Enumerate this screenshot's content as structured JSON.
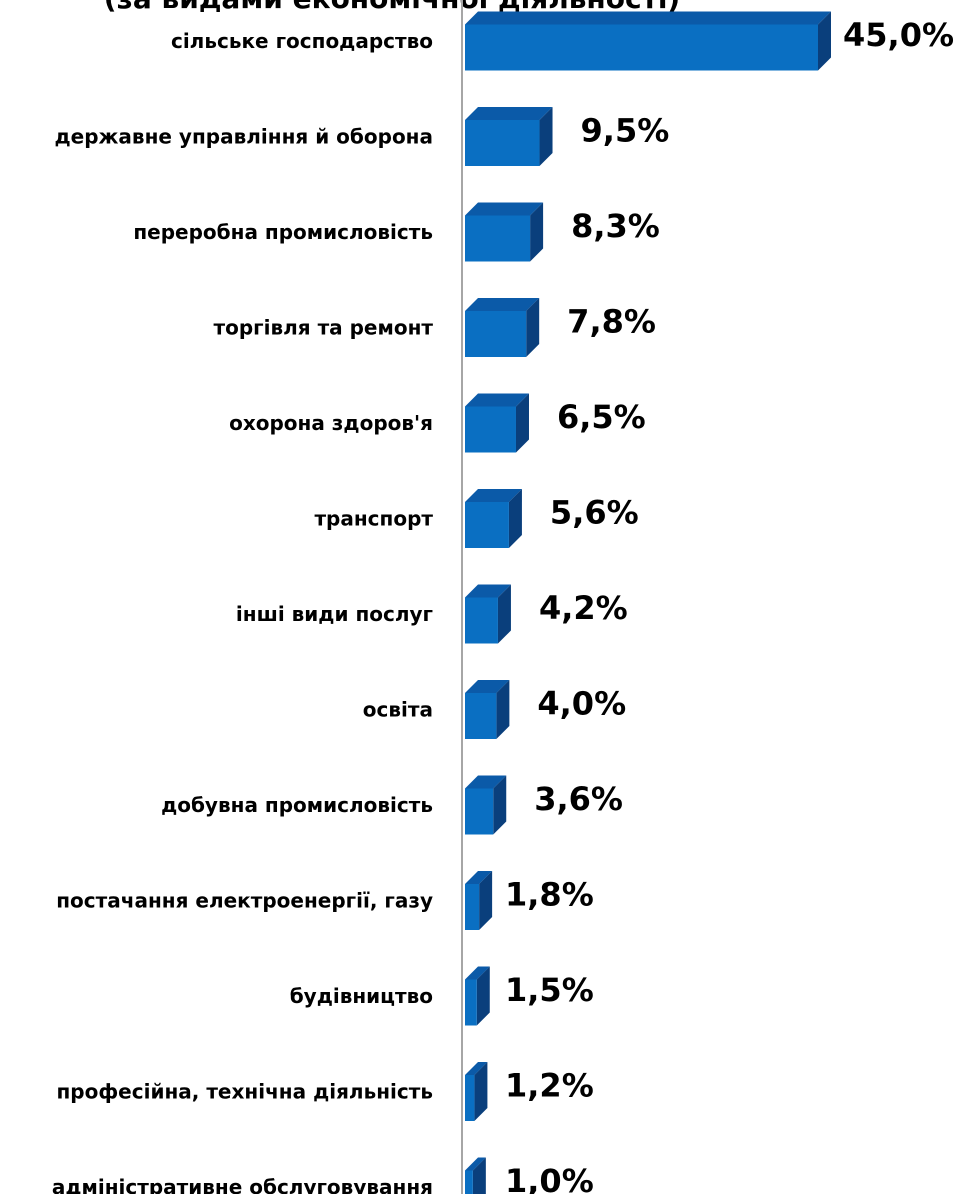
{
  "chart_data": {
    "type": "bar",
    "orientation": "horizontal",
    "title": "(за видами економічної діяльності)",
    "categories": [
      "сільське господарство",
      "державне управління й оборона",
      "переробна промисловість",
      "торгівля та ремонт",
      "охорона здоров'я",
      "транспорт",
      "інші види послуг",
      "освіта",
      "добувна промисловість",
      "постачання електроенергії, газу",
      "будівництво",
      "професійна, технічна діяльність",
      "адміністративне обслуговування"
    ],
    "values": [
      45.0,
      9.5,
      8.3,
      7.8,
      6.5,
      5.6,
      4.2,
      4.0,
      3.6,
      1.8,
      1.5,
      1.2,
      1.0
    ],
    "value_labels": [
      "45,0%",
      "9,5%",
      "8,3%",
      "7,8%",
      "6,5%",
      "5,6%",
      "4,2%",
      "4,0%",
      "3,6%",
      "1,8%",
      "1,5%",
      "1,2%",
      "1,0%"
    ],
    "xlim": [
      0,
      45
    ],
    "grid": false,
    "colors": {
      "front": "#0a6fc2",
      "top": "#0b5aa8",
      "side": "#0a3f7c",
      "axis": "#a6a6a6"
    }
  }
}
